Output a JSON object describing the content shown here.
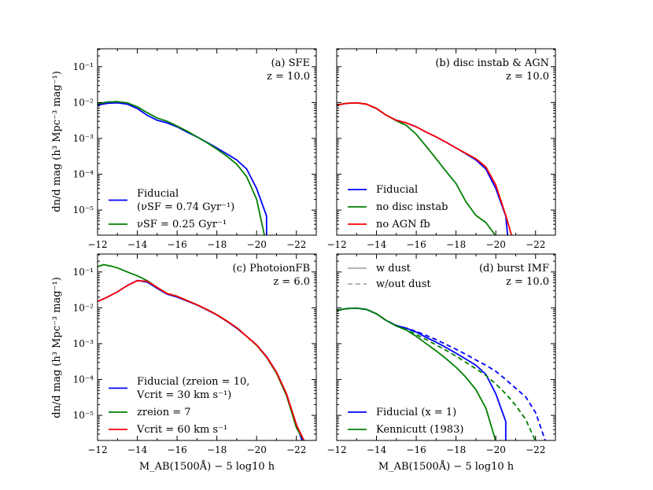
{
  "chart_data": [
    {
      "type": "line",
      "panel": "a",
      "title_lines": [
        "(a) SFE",
        "z = 10.0"
      ],
      "xlim": [
        -12,
        -23
      ],
      "ylim_log10": [
        -5.7,
        -0.5
      ],
      "yscale": "log",
      "legend_loc": "lower-left",
      "x_ticks": [
        "−12",
        "−14",
        "−16",
        "−18",
        "−20",
        "−22"
      ],
      "y_ticks": [
        "10⁻¹",
        "10⁻²",
        "10⁻³",
        "10⁻⁴",
        "10⁻⁵"
      ],
      "series": [
        {
          "legend": [
            "Fiducial",
            "(νSF = 0.74 Gyr⁻¹)"
          ],
          "color": "#0000ff",
          "x": [
            -12,
            -12.5,
            -13,
            -13.5,
            -14,
            -14.5,
            -15,
            -15.5,
            -16,
            -16.5,
            -17,
            -17.5,
            -18,
            -18.5,
            -19,
            -19.5,
            -20,
            -20.5,
            -20.5
          ],
          "y": [
            0.0085,
            0.0095,
            0.0098,
            0.009,
            0.0068,
            0.0044,
            0.0032,
            0.0027,
            0.0021,
            0.0015,
            0.0011,
            0.00078,
            0.00054,
            0.00037,
            0.00025,
            0.00014,
            4e-05,
            6.8e-06,
            1.9e-06
          ]
        },
        {
          "legend": [
            "νSF = 0.25 Gyr⁻¹"
          ],
          "color": "#008000",
          "x": [
            -12,
            -12.5,
            -13,
            -13.5,
            -14,
            -14.5,
            -15,
            -15.5,
            -16,
            -16.5,
            -17,
            -17.5,
            -18,
            -18.5,
            -19,
            -19.5,
            -20,
            -20.4
          ],
          "y": [
            0.0092,
            0.0104,
            0.0106,
            0.0098,
            0.0076,
            0.0052,
            0.0037,
            0.003,
            0.0022,
            0.0016,
            0.0011,
            0.00076,
            0.0005,
            0.00032,
            0.00019,
            8.5e-05,
            2e-05,
            1.9e-06
          ]
        }
      ]
    },
    {
      "type": "line",
      "panel": "b",
      "title_lines": [
        "(b) disc instab & AGN",
        "z = 10.0"
      ],
      "xlim": [
        -12,
        -23
      ],
      "ylim_log10": [
        -5.7,
        -0.5
      ],
      "yscale": "log",
      "legend_loc": "lower-left",
      "x_ticks": [
        "−12",
        "−14",
        "−16",
        "−18",
        "−20",
        "−22"
      ],
      "y_ticks": [],
      "series": [
        {
          "legend": [
            "Fiducial"
          ],
          "color": "#0000ff",
          "x": [
            -12,
            -12.5,
            -13,
            -13.5,
            -14,
            -14.5,
            -15,
            -15.5,
            -16,
            -16.5,
            -17,
            -17.5,
            -18,
            -18.5,
            -19,
            -19.5,
            -20,
            -20.5,
            -20.6
          ],
          "y": [
            0.0085,
            0.0095,
            0.0098,
            0.009,
            0.0068,
            0.0044,
            0.0032,
            0.0027,
            0.0021,
            0.0015,
            0.0011,
            0.00078,
            0.00054,
            0.00037,
            0.00025,
            0.00014,
            4e-05,
            6.8e-06,
            1.9e-06
          ]
        },
        {
          "legend": [
            "no disc instab"
          ],
          "color": "#008000",
          "x": [
            -12,
            -12.5,
            -13,
            -13.5,
            -14,
            -14.5,
            -15,
            -15.5,
            -16,
            -16.5,
            -17,
            -17.5,
            -18,
            -18.5,
            -19,
            -19.5,
            -20
          ],
          "y": [
            0.0085,
            0.0095,
            0.0098,
            0.009,
            0.0068,
            0.0044,
            0.0031,
            0.0023,
            0.0013,
            0.0006,
            0.00027,
            0.00012,
            5.5e-05,
            1.7e-05,
            7.1e-06,
            4.5e-06,
            1.9e-06
          ]
        },
        {
          "legend": [
            "no AGN fb"
          ],
          "color": "#ff0000",
          "x": [
            -12,
            -12.5,
            -13,
            -13.5,
            -14,
            -14.5,
            -15,
            -15.5,
            -16,
            -16.5,
            -17,
            -17.5,
            -18,
            -18.5,
            -19,
            -19.5,
            -20,
            -20.5,
            -20.8
          ],
          "y": [
            0.0085,
            0.0095,
            0.0098,
            0.009,
            0.0068,
            0.0044,
            0.0032,
            0.0027,
            0.0021,
            0.0015,
            0.0011,
            0.00078,
            0.00054,
            0.00038,
            0.00027,
            0.00016,
            5e-05,
            7.2e-06,
            1.9e-06
          ]
        }
      ]
    },
    {
      "type": "line",
      "panel": "c",
      "title_lines": [
        "(c) PhotoionFB",
        "z = 6.0"
      ],
      "xlim": [
        -12,
        -23
      ],
      "ylim_log10": [
        -5.7,
        -0.5
      ],
      "yscale": "log",
      "legend_loc": "lower-left",
      "x_ticks": [
        "−12",
        "−14",
        "−16",
        "−18",
        "−20",
        "−22"
      ],
      "y_ticks": [
        "10⁻¹",
        "10⁻²",
        "10⁻³",
        "10⁻⁴",
        "10⁻⁵"
      ],
      "series": [
        {
          "legend": [
            "Fiducial (zreion = 10,",
            "Vcrit = 30 km s⁻¹)"
          ],
          "color": "#0000ff",
          "x": [
            -12,
            -12.5,
            -13,
            -13.5,
            -14,
            -14.5,
            -15,
            -15.5,
            -16,
            -16.5,
            -17,
            -17.5,
            -18,
            -18.5,
            -19,
            -19.5,
            -20,
            -20.5,
            -21,
            -21.5,
            -22,
            -22.3
          ],
          "y": [
            0.015,
            0.02,
            0.028,
            0.042,
            0.058,
            0.052,
            0.035,
            0.024,
            0.02,
            0.0155,
            0.012,
            0.0088,
            0.0063,
            0.0042,
            0.0027,
            0.0016,
            0.00092,
            0.00044,
            0.00016,
            4e-05,
            5.5e-06,
            1.9e-06
          ]
        },
        {
          "legend": [
            "zreion = 7"
          ],
          "color": "#008000",
          "x": [
            -12,
            -12.3,
            -12.7,
            -13,
            -13.5,
            -14,
            -14.5,
            -15,
            -15.5,
            -16,
            -16.5,
            -17,
            -17.5,
            -18,
            -18.5,
            -19,
            -19.5,
            -20,
            -20.5,
            -21,
            -21.5,
            -22,
            -22.4
          ],
          "y": [
            0.14,
            0.16,
            0.145,
            0.13,
            0.1,
            0.078,
            0.057,
            0.037,
            0.025,
            0.021,
            0.016,
            0.0122,
            0.009,
            0.0064,
            0.0043,
            0.0028,
            0.0016,
            0.0009,
            0.00042,
            0.00015,
            3.6e-05,
            4.5e-06,
            1.9e-06
          ]
        },
        {
          "legend": [
            "Vcrit = 60 km s⁻¹"
          ],
          "color": "#ff0000",
          "x": [
            -12,
            -12.5,
            -13,
            -13.5,
            -14,
            -14.5,
            -15,
            -15.5,
            -16,
            -16.5,
            -17,
            -17.5,
            -18,
            -18.5,
            -19,
            -19.5,
            -20,
            -20.5,
            -21,
            -21.5,
            -22,
            -22.4
          ],
          "y": [
            0.015,
            0.02,
            0.028,
            0.042,
            0.057,
            0.055,
            0.037,
            0.025,
            0.021,
            0.016,
            0.0122,
            0.009,
            0.0064,
            0.0043,
            0.0028,
            0.0016,
            0.00092,
            0.00043,
            0.00016,
            4e-05,
            5.5e-06,
            1.9e-06
          ]
        }
      ]
    },
    {
      "type": "line",
      "panel": "d",
      "title_lines": [
        "(d) burst IMF",
        "z = 10.0"
      ],
      "xlim": [
        -12,
        -23
      ],
      "ylim_log10": [
        -5.7,
        -0.5
      ],
      "yscale": "log",
      "legend_loc": "lower-left",
      "x_ticks": [
        "−12",
        "−14",
        "−16",
        "−18",
        "−20",
        "−22"
      ],
      "y_ticks": [],
      "style_legend": [
        {
          "label": "w dust",
          "color": "#aaaaaa",
          "dash": "solid"
        },
        {
          "label": "w/out dust",
          "color": "#aaaaaa",
          "dash": "dashed"
        }
      ],
      "series": [
        {
          "legend": [
            "Fiducial (x = 1)"
          ],
          "color": "#0000ff",
          "dash": "solid",
          "x": [
            -12,
            -12.5,
            -13,
            -13.5,
            -14,
            -14.5,
            -15,
            -15.5,
            -16,
            -16.5,
            -17,
            -17.5,
            -18,
            -18.5,
            -19,
            -19.5,
            -20,
            -20.5,
            -20.5
          ],
          "y": [
            0.0085,
            0.0095,
            0.0098,
            0.009,
            0.0068,
            0.0044,
            0.0032,
            0.0027,
            0.0021,
            0.0015,
            0.0011,
            0.00078,
            0.00054,
            0.00037,
            0.00025,
            0.00014,
            4e-05,
            6.8e-06,
            1.9e-06
          ]
        },
        {
          "legend": [
            "Kennicutt (1983)"
          ],
          "color": "#008000",
          "dash": "solid",
          "x": [
            -12,
            -12.5,
            -13,
            -13.5,
            -14,
            -14.5,
            -15,
            -15.5,
            -16,
            -16.5,
            -17,
            -17.5,
            -18,
            -18.5,
            -19,
            -19.5,
            -20
          ],
          "y": [
            0.0085,
            0.0095,
            0.0098,
            0.009,
            0.0068,
            0.0044,
            0.0031,
            0.0024,
            0.0016,
            0.001,
            0.00063,
            0.00038,
            0.00022,
            0.000115,
            5.2e-05,
            1.6e-05,
            1.9e-06
          ]
        },
        {
          "legend": [],
          "color": "#0000ff",
          "dash": "dashed",
          "x": [
            -12,
            -12.5,
            -13,
            -13.5,
            -14,
            -14.5,
            -15,
            -15.5,
            -16,
            -16.5,
            -17,
            -17.5,
            -18,
            -18.5,
            -19,
            -19.5,
            -20,
            -20.5,
            -21,
            -21.5,
            -22,
            -22.5
          ],
          "y": [
            0.0085,
            0.0095,
            0.0098,
            0.009,
            0.0068,
            0.0044,
            0.0032,
            0.0027,
            0.0022,
            0.0017,
            0.0013,
            0.00095,
            0.0007,
            0.0005,
            0.00035,
            0.00025,
            0.00017,
            0.0001,
            5.7e-05,
            3.3e-05,
            1.2e-05,
            1.9e-06
          ]
        },
        {
          "legend": [],
          "color": "#008000",
          "dash": "dashed",
          "x": [
            -12,
            -12.5,
            -13,
            -13.5,
            -14,
            -14.5,
            -15,
            -15.5,
            -16,
            -16.5,
            -17,
            -17.5,
            -18,
            -18.5,
            -19,
            -19.5,
            -20,
            -20.5,
            -21,
            -21.5,
            -22
          ],
          "y": [
            0.0085,
            0.0095,
            0.0098,
            0.009,
            0.0068,
            0.0044,
            0.0031,
            0.0025,
            0.0018,
            0.0013,
            0.00092,
            0.00065,
            0.00045,
            0.0003,
            0.0002,
            0.00013,
            7.5e-05,
            4e-05,
            1.9e-05,
            7.8e-06,
            1.9e-06
          ]
        }
      ]
    }
  ],
  "shared_labels": {
    "ylabel_left": "dn/d mag (h³ Mpc⁻³ mag⁻¹)",
    "xlabel": "M_AB(1500Å) − 5 log10 h"
  }
}
